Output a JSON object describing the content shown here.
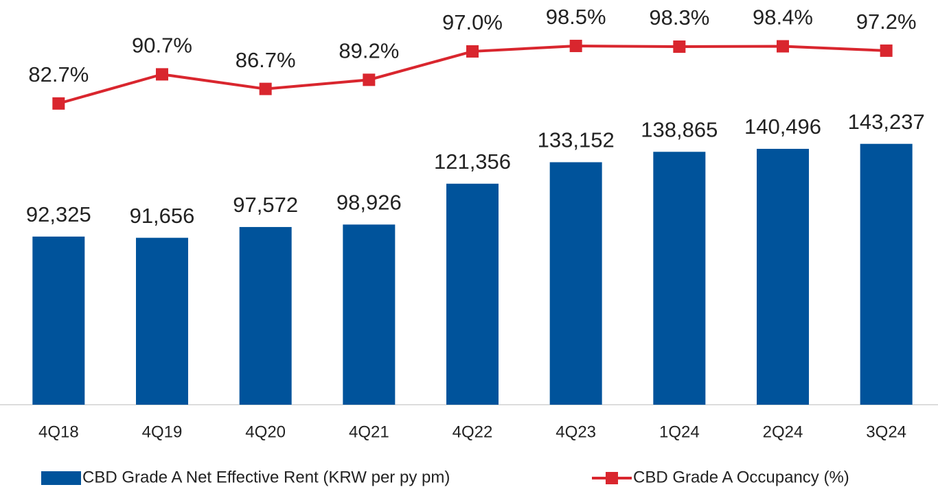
{
  "chart_data": {
    "type": "bar-line",
    "categories": [
      "4Q18",
      "4Q19",
      "4Q20",
      "4Q21",
      "4Q22",
      "4Q23",
      "1Q24",
      "2Q24",
      "3Q24"
    ],
    "series": [
      {
        "name": "CBD Grade A Net Effective Rent (KRW per py pm)",
        "type": "bar",
        "color": "#00539b",
        "values": [
          92325,
          91656,
          97572,
          98926,
          121356,
          133152,
          138865,
          140496,
          143237
        ],
        "value_labels": [
          "92,325",
          "91,656",
          "97,572",
          "98,926",
          "121,356",
          "133,152",
          "138,865",
          "140,496",
          "143,237"
        ]
      },
      {
        "name": "CBD Grade A Occupancy (%)",
        "type": "line",
        "axis": "y2",
        "color": "#d9262e",
        "values": [
          82.7,
          90.7,
          86.7,
          89.2,
          97.0,
          98.5,
          98.3,
          98.4,
          97.2
        ],
        "value_labels": [
          "82.7%",
          "90.7%",
          "86.7%",
          "89.2%",
          "97.0%",
          "98.5%",
          "98.3%",
          "98.4%",
          "97.2%"
        ]
      }
    ],
    "ylim": [
      0,
      200000
    ],
    "y2lim": [
      0,
      100
    ],
    "legend": "bottom"
  }
}
